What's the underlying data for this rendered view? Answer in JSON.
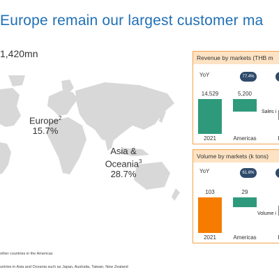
{
  "title": "Europe remain our largest customer ma",
  "total_label": "1,420mn",
  "regions": {
    "europe": {
      "name": "Europe",
      "sup": "2",
      "share": "15.7%"
    },
    "asia": {
      "name_line1": "Asia &",
      "name_line2": "Oceania",
      "sup": "3",
      "share": "28.7%"
    }
  },
  "footnotes": {
    "one": "other countries in the Americas",
    "two": "untries in Asia and Oceania such as Japan, Australia, Taiwan, New Zealand"
  },
  "revenue_panel": {
    "header": "Revenue by markets (THB m",
    "yoy_label": "YoY",
    "yoy_pill": "77.4%",
    "note": "Sales i",
    "chart_data": {
      "type": "bar",
      "categories": [
        "2021",
        "Americas",
        "E"
      ],
      "values": [
        14529,
        5200,
        null
      ],
      "value_labels": [
        "14,529",
        "5,200",
        ""
      ]
    }
  },
  "volume_panel": {
    "header": "Volume by markets (k tons)",
    "yoy_label": "YoY",
    "yoy_pill": "61.6%",
    "note": "Volume i",
    "chart_data": {
      "type": "bar",
      "categories": [
        "2021",
        "Americas",
        "E"
      ],
      "values": [
        103,
        29,
        null
      ],
      "value_labels": [
        "103",
        "29",
        ""
      ]
    }
  },
  "colors": {
    "title": "#1f6fb5",
    "map": "#d8d8d8",
    "revenue_base_bar": "#2e9a7b",
    "revenue_waterfall_bar": "#2e9a7b",
    "volume_base_bar": "#f57c00",
    "volume_waterfall_bar": "#2e9a7b",
    "panel_border": "#f2a24a",
    "panel_header": "#fde3c4",
    "pill": "#2f4a6b"
  }
}
